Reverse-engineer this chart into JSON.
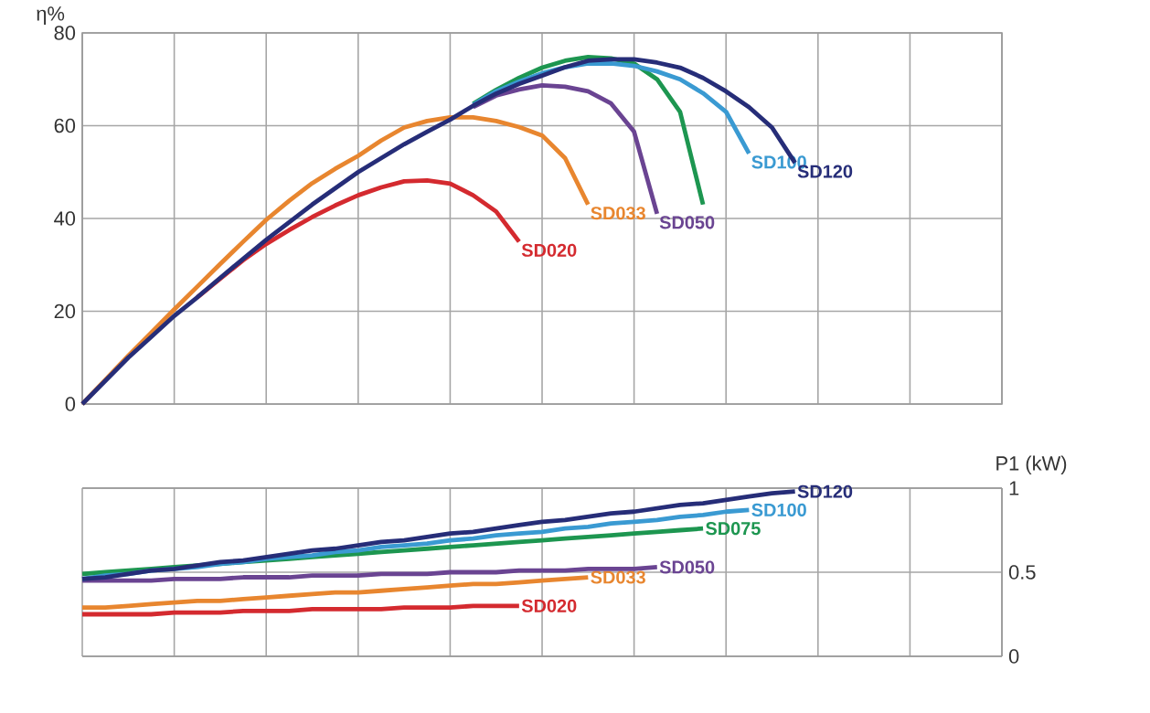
{
  "chart_data": [
    {
      "type": "line",
      "ylabel": "η%",
      "ylim": [
        0,
        80
      ],
      "categories": [
        null,
        null,
        null,
        null,
        null,
        null,
        null,
        null,
        null,
        null,
        null,
        null,
        null,
        null,
        null,
        null,
        null,
        null,
        null,
        null,
        null,
        null,
        null,
        null,
        null,
        null,
        null,
        null,
        null,
        null,
        null,
        null,
        null,
        null,
        null,
        null,
        null,
        null,
        null,
        null,
        null
      ],
      "yticks": [
        0,
        20,
        40,
        60,
        80
      ],
      "grid": true,
      "tick_labels": "y",
      "marker": "none",
      "line_style": "solid",
      "series": [
        {
          "name": "SD020",
          "color": "#d42a2f",
          "values": [
            null,
            null,
            null,
            null,
            null,
            23,
            27,
            31,
            34.5,
            37.5,
            40.3,
            42.8,
            45,
            46.7,
            48,
            48.2,
            47.5,
            45,
            41.5,
            35,
            null,
            null,
            null,
            null,
            null,
            null,
            null,
            null,
            null,
            null,
            null,
            null,
            null,
            null,
            null,
            null,
            null,
            null,
            null,
            null,
            null
          ]
        },
        {
          "name": "SD033",
          "color": "#e8862f",
          "values": [
            0,
            5.2,
            10.4,
            15.4,
            20.4,
            25.3,
            30.2,
            35,
            39.7,
            43.8,
            47.6,
            50.7,
            53.5,
            56.8,
            59.6,
            61,
            61.8,
            61.8,
            61,
            59.7,
            57.9,
            53,
            43,
            null,
            null,
            null,
            null,
            null,
            null,
            null,
            null,
            null,
            null,
            null,
            null,
            null,
            null,
            null,
            null,
            null,
            null
          ]
        },
        {
          "name": "SD050",
          "color": "#6a4492",
          "values": [
            null,
            null,
            null,
            null,
            null,
            null,
            null,
            null,
            null,
            null,
            null,
            null,
            null,
            null,
            null,
            null,
            null,
            64,
            66.5,
            67.8,
            68.7,
            68.4,
            67.4,
            64.8,
            58.7,
            41,
            null,
            null,
            null,
            null,
            null,
            null,
            null,
            null,
            null,
            null,
            null,
            null,
            null,
            null,
            null
          ]
        },
        {
          "color": "#1d9650",
          "values": [
            null,
            null,
            null,
            null,
            null,
            null,
            null,
            null,
            null,
            null,
            null,
            null,
            null,
            null,
            null,
            null,
            null,
            64.7,
            67.7,
            70.3,
            72.5,
            74,
            74.8,
            74.5,
            73.4,
            70,
            63,
            43,
            null,
            null,
            null,
            null,
            null,
            null,
            null,
            null,
            null,
            null,
            null,
            null,
            null
          ]
        },
        {
          "name": "SD100",
          "color": "#3a9ad2",
          "values": [
            null,
            null,
            null,
            null,
            null,
            null,
            null,
            null,
            null,
            null,
            null,
            null,
            null,
            null,
            null,
            null,
            null,
            64.5,
            67.4,
            69.5,
            71.3,
            72.6,
            73.4,
            73.4,
            72.9,
            71.7,
            70,
            67,
            63,
            54,
            null,
            null,
            null,
            null,
            null,
            null,
            null,
            null,
            null,
            null,
            null
          ]
        },
        {
          "name": "SD120",
          "color": "#262d78",
          "values": [
            0,
            5,
            10,
            14.5,
            19,
            23,
            27.2,
            31.3,
            35.4,
            39.2,
            43,
            46.5,
            50,
            53,
            56,
            58.7,
            61.3,
            64.3,
            66.9,
            69,
            70.8,
            72.6,
            74,
            74.3,
            74.3,
            73.6,
            72.5,
            70.3,
            67.4,
            64,
            59.6,
            52,
            null,
            null,
            null,
            null,
            null,
            null,
            null,
            null,
            null
          ]
        }
      ]
    },
    {
      "type": "line",
      "ylabel": "P1 (kW)",
      "ylim": [
        0,
        1
      ],
      "categories": [
        null,
        null,
        null,
        null,
        null,
        null,
        null,
        null,
        null,
        null,
        null,
        null,
        null,
        null,
        null,
        null,
        null,
        null,
        null,
        null,
        null,
        null,
        null,
        null,
        null,
        null,
        null,
        null,
        null,
        null,
        null,
        null,
        null,
        null,
        null,
        null,
        null,
        null,
        null,
        null,
        null
      ],
      "yticks": [
        0,
        0.5,
        1
      ],
      "grid": true,
      "tick_labels": "y",
      "marker": "none",
      "line_style": "solid",
      "series": [
        {
          "name": "SD020",
          "color": "#d42a2f",
          "values": [
            0.25,
            0.25,
            0.25,
            0.25,
            0.26,
            0.26,
            0.26,
            0.27,
            0.27,
            0.27,
            0.28,
            0.28,
            0.28,
            0.28,
            0.29,
            0.29,
            0.29,
            0.3,
            0.3,
            0.3,
            null,
            null,
            null,
            null,
            null,
            null,
            null,
            null,
            null,
            null,
            null,
            null,
            null,
            null,
            null,
            null,
            null,
            null,
            null,
            null,
            null
          ]
        },
        {
          "name": "SD033",
          "color": "#e8862f",
          "values": [
            0.29,
            0.29,
            0.3,
            0.31,
            0.32,
            0.33,
            0.33,
            0.34,
            0.35,
            0.36,
            0.37,
            0.38,
            0.38,
            0.39,
            0.4,
            0.41,
            0.42,
            0.43,
            0.43,
            0.44,
            0.45,
            0.46,
            0.47,
            null,
            null,
            null,
            null,
            null,
            null,
            null,
            null,
            null,
            null,
            null,
            null,
            null,
            null,
            null,
            null,
            null,
            null
          ]
        },
        {
          "name": "SD050",
          "color": "#6a4492",
          "values": [
            0.45,
            0.45,
            0.45,
            0.45,
            0.46,
            0.46,
            0.46,
            0.47,
            0.47,
            0.47,
            0.48,
            0.48,
            0.48,
            0.49,
            0.49,
            0.49,
            0.5,
            0.5,
            0.5,
            0.51,
            0.51,
            0.51,
            0.52,
            0.52,
            0.52,
            0.53,
            null,
            null,
            null,
            null,
            null,
            null,
            null,
            null,
            null,
            null,
            null,
            null,
            null,
            null,
            null
          ]
        },
        {
          "name": "SD075",
          "color": "#1d9650",
          "values": [
            0.49,
            0.5,
            0.51,
            0.52,
            0.53,
            0.54,
            0.55,
            0.56,
            0.57,
            0.58,
            0.59,
            0.6,
            0.61,
            0.62,
            0.63,
            0.64,
            0.65,
            0.66,
            0.67,
            0.68,
            0.69,
            0.7,
            0.71,
            0.72,
            0.73,
            0.74,
            0.75,
            0.76,
            null,
            null,
            null,
            null,
            null,
            null,
            null,
            null,
            null,
            null,
            null,
            null,
            null
          ]
        },
        {
          "name": "SD100",
          "color": "#3a9ad2",
          "values": [
            0.46,
            0.48,
            0.49,
            0.51,
            0.52,
            0.53,
            0.55,
            0.56,
            0.58,
            0.59,
            0.6,
            0.62,
            0.63,
            0.65,
            0.66,
            0.67,
            0.69,
            0.7,
            0.72,
            0.73,
            0.74,
            0.76,
            0.77,
            0.79,
            0.8,
            0.81,
            0.83,
            0.84,
            0.86,
            0.87,
            null,
            null,
            null,
            null,
            null,
            null,
            null,
            null,
            null,
            null,
            null
          ]
        },
        {
          "name": "SD120",
          "color": "#262d78",
          "values": [
            0.46,
            0.47,
            0.49,
            0.51,
            0.52,
            0.54,
            0.56,
            0.57,
            0.59,
            0.61,
            0.63,
            0.64,
            0.66,
            0.68,
            0.69,
            0.71,
            0.73,
            0.74,
            0.76,
            0.78,
            0.8,
            0.81,
            0.83,
            0.85,
            0.86,
            0.88,
            0.9,
            0.91,
            0.93,
            0.95,
            0.97,
            0.98,
            null,
            null,
            null,
            null,
            null,
            null,
            null,
            null,
            null
          ]
        }
      ]
    }
  ]
}
